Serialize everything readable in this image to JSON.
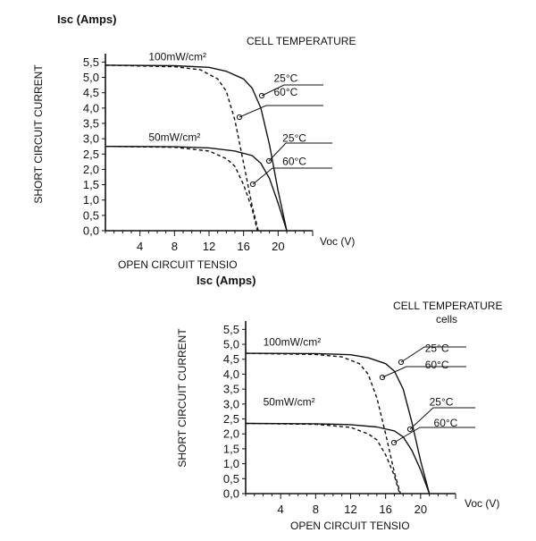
{
  "chart_data": [
    {
      "type": "line",
      "y_axis_title": "Isc (Amps)",
      "ylabel": "SHORT CIRCUIT CURRENT",
      "xlabel": "OPEN CIRCUIT TENSIO",
      "x_axis_unit": "Voc (V)",
      "legend_title": "CELL TEMPERATURE",
      "xticks": [
        4,
        8,
        12,
        16,
        20
      ],
      "yticks": [
        "0,0",
        "0,5",
        "1,0",
        "1,5",
        "2,0",
        "2,5",
        "3,0",
        "3,5",
        "4,0",
        "4,5",
        "5,0",
        "5,5"
      ],
      "xlim": [
        0,
        24
      ],
      "ylim": [
        0,
        5.6
      ],
      "grid": false,
      "series": [
        {
          "name": "100mW/cm² 25°C",
          "line_style": "solid",
          "x": [
            0,
            8,
            12,
            14,
            16,
            17,
            18,
            19,
            20,
            21
          ],
          "y": [
            5.4,
            5.38,
            5.33,
            5.2,
            4.95,
            4.65,
            4.0,
            2.8,
            1.3,
            0
          ]
        },
        {
          "name": "100mW/cm² 60°C",
          "line_style": "dashed",
          "x": [
            0,
            8,
            11,
            13,
            14,
            15,
            16,
            17,
            17.7
          ],
          "y": [
            5.4,
            5.35,
            5.25,
            4.95,
            4.55,
            3.6,
            2.2,
            0.8,
            0
          ]
        },
        {
          "name": "50mW/cm² 25°C",
          "line_style": "solid",
          "x": [
            0,
            8,
            12,
            15,
            17,
            18,
            19,
            20,
            21
          ],
          "y": [
            2.75,
            2.74,
            2.7,
            2.6,
            2.45,
            2.2,
            1.7,
            0.9,
            0
          ]
        },
        {
          "name": "50mW/cm² 60°C",
          "line_style": "dashed",
          "x": [
            0,
            8,
            12,
            14,
            15,
            16,
            17,
            17.6
          ],
          "y": [
            2.75,
            2.72,
            2.6,
            2.35,
            2.1,
            1.5,
            0.7,
            0
          ]
        }
      ],
      "annotations": [
        {
          "text": "100mW/cm²",
          "x": 5,
          "y": 5.55
        },
        {
          "text": "50mW/cm²",
          "x": 5,
          "y": 2.93
        },
        {
          "text": "25°C",
          "x": 19.5,
          "y": 4.85
        },
        {
          "text": "60°C",
          "x": 19.5,
          "y": 4.4
        },
        {
          "text": "25°C",
          "x": 20.5,
          "y": 2.9
        },
        {
          "text": "60°C",
          "x": 20.5,
          "y": 2.15
        }
      ]
    },
    {
      "type": "line",
      "y_axis_title": "Isc (Amps)",
      "ylabel": "SHORT CIRCUIT CURRENT",
      "xlabel": "OPEN CIRCUIT TENSIO",
      "x_axis_unit": "Voc (V)",
      "legend_title": "CELL TEMPERATURE",
      "partial_text": "cells",
      "xticks": [
        4,
        8,
        12,
        16,
        20
      ],
      "yticks": [
        "0,0",
        "0,5",
        "1,0",
        "1,5",
        "2,0",
        "2,5",
        "3,0",
        "3,5",
        "4,0",
        "4,5",
        "5,0",
        "5,5"
      ],
      "xlim": [
        0,
        24
      ],
      "ylim": [
        0,
        5.6
      ],
      "grid": false,
      "series": [
        {
          "name": "100mW/cm² 25°C",
          "line_style": "solid",
          "x": [
            0,
            8,
            12,
            14,
            16,
            17,
            18,
            19,
            20,
            21
          ],
          "y": [
            4.7,
            4.69,
            4.65,
            4.55,
            4.35,
            4.1,
            3.5,
            2.4,
            1.1,
            0
          ]
        },
        {
          "name": "100mW/cm² 60°C",
          "line_style": "dashed",
          "x": [
            0,
            8,
            11,
            13,
            14,
            15,
            16,
            17,
            17.7
          ],
          "y": [
            4.7,
            4.66,
            4.58,
            4.35,
            4.0,
            3.2,
            2.0,
            0.7,
            0
          ]
        },
        {
          "name": "50mW/cm² 25°C",
          "line_style": "solid",
          "x": [
            0,
            8,
            12,
            15,
            17,
            18,
            19,
            20,
            21
          ],
          "y": [
            2.35,
            2.34,
            2.31,
            2.23,
            2.1,
            1.9,
            1.45,
            0.8,
            0
          ]
        },
        {
          "name": "50mW/cm² 60°C",
          "line_style": "dashed",
          "x": [
            0,
            8,
            12,
            14,
            15,
            16,
            17,
            17.6
          ],
          "y": [
            2.35,
            2.32,
            2.22,
            2.0,
            1.8,
            1.3,
            0.6,
            0
          ]
        }
      ],
      "annotations": [
        {
          "text": "100mW/cm²",
          "x": 2,
          "y": 4.95
        },
        {
          "text": "50mW/cm²",
          "x": 2,
          "y": 2.95
        },
        {
          "text": "25°C",
          "x": 20.5,
          "y": 4.75
        },
        {
          "text": "60°C",
          "x": 20.5,
          "y": 4.2
        },
        {
          "text": "25°C",
          "x": 21,
          "y": 2.95
        },
        {
          "text": "60°C",
          "x": 21.5,
          "y": 2.25
        }
      ]
    }
  ]
}
